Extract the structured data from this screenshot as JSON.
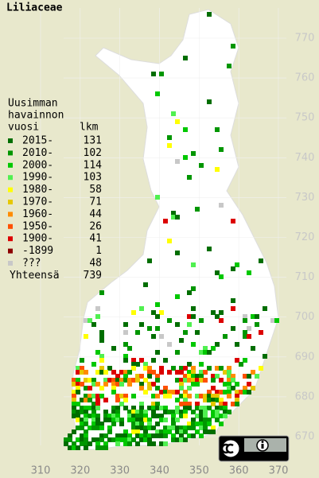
{
  "title": "Liliaceae",
  "legend": {
    "heading": [
      "Uusimman",
      "havainnon",
      "vuosi"
    ],
    "count_heading": "lkm",
    "items": [
      {
        "label": "2015-",
        "count": 131,
        "color": "#006e00"
      },
      {
        "label": "2010-",
        "count": 102,
        "color": "#009600"
      },
      {
        "label": "2000-",
        "count": 114,
        "color": "#00c800"
      },
      {
        "label": "1990-",
        "count": 103,
        "color": "#50f050"
      },
      {
        "label": "1980-",
        "count": 58,
        "color": "#ffff00"
      },
      {
        "label": "1970-",
        "count": 71,
        "color": "#e6c800"
      },
      {
        "label": "1960-",
        "count": 44,
        "color": "#ff8c00"
      },
      {
        "label": "1950-",
        "count": 26,
        "color": "#ff5000"
      },
      {
        "label": "1900-",
        "count": 41,
        "color": "#dc0000"
      },
      {
        "label": "-1899",
        "count": 1,
        "color": "#8c0000"
      },
      {
        "label": "???",
        "count": 48,
        "color": "#c8c8c8"
      }
    ],
    "total_label": "Yhteensä",
    "total": 739
  },
  "map": {
    "xticks": [
      310,
      320,
      330,
      340,
      350,
      360,
      370
    ],
    "yticks": [
      670,
      680,
      690,
      700,
      710,
      720,
      730,
      740,
      750,
      760,
      770
    ]
  },
  "license": {
    "by": "BY"
  }
}
